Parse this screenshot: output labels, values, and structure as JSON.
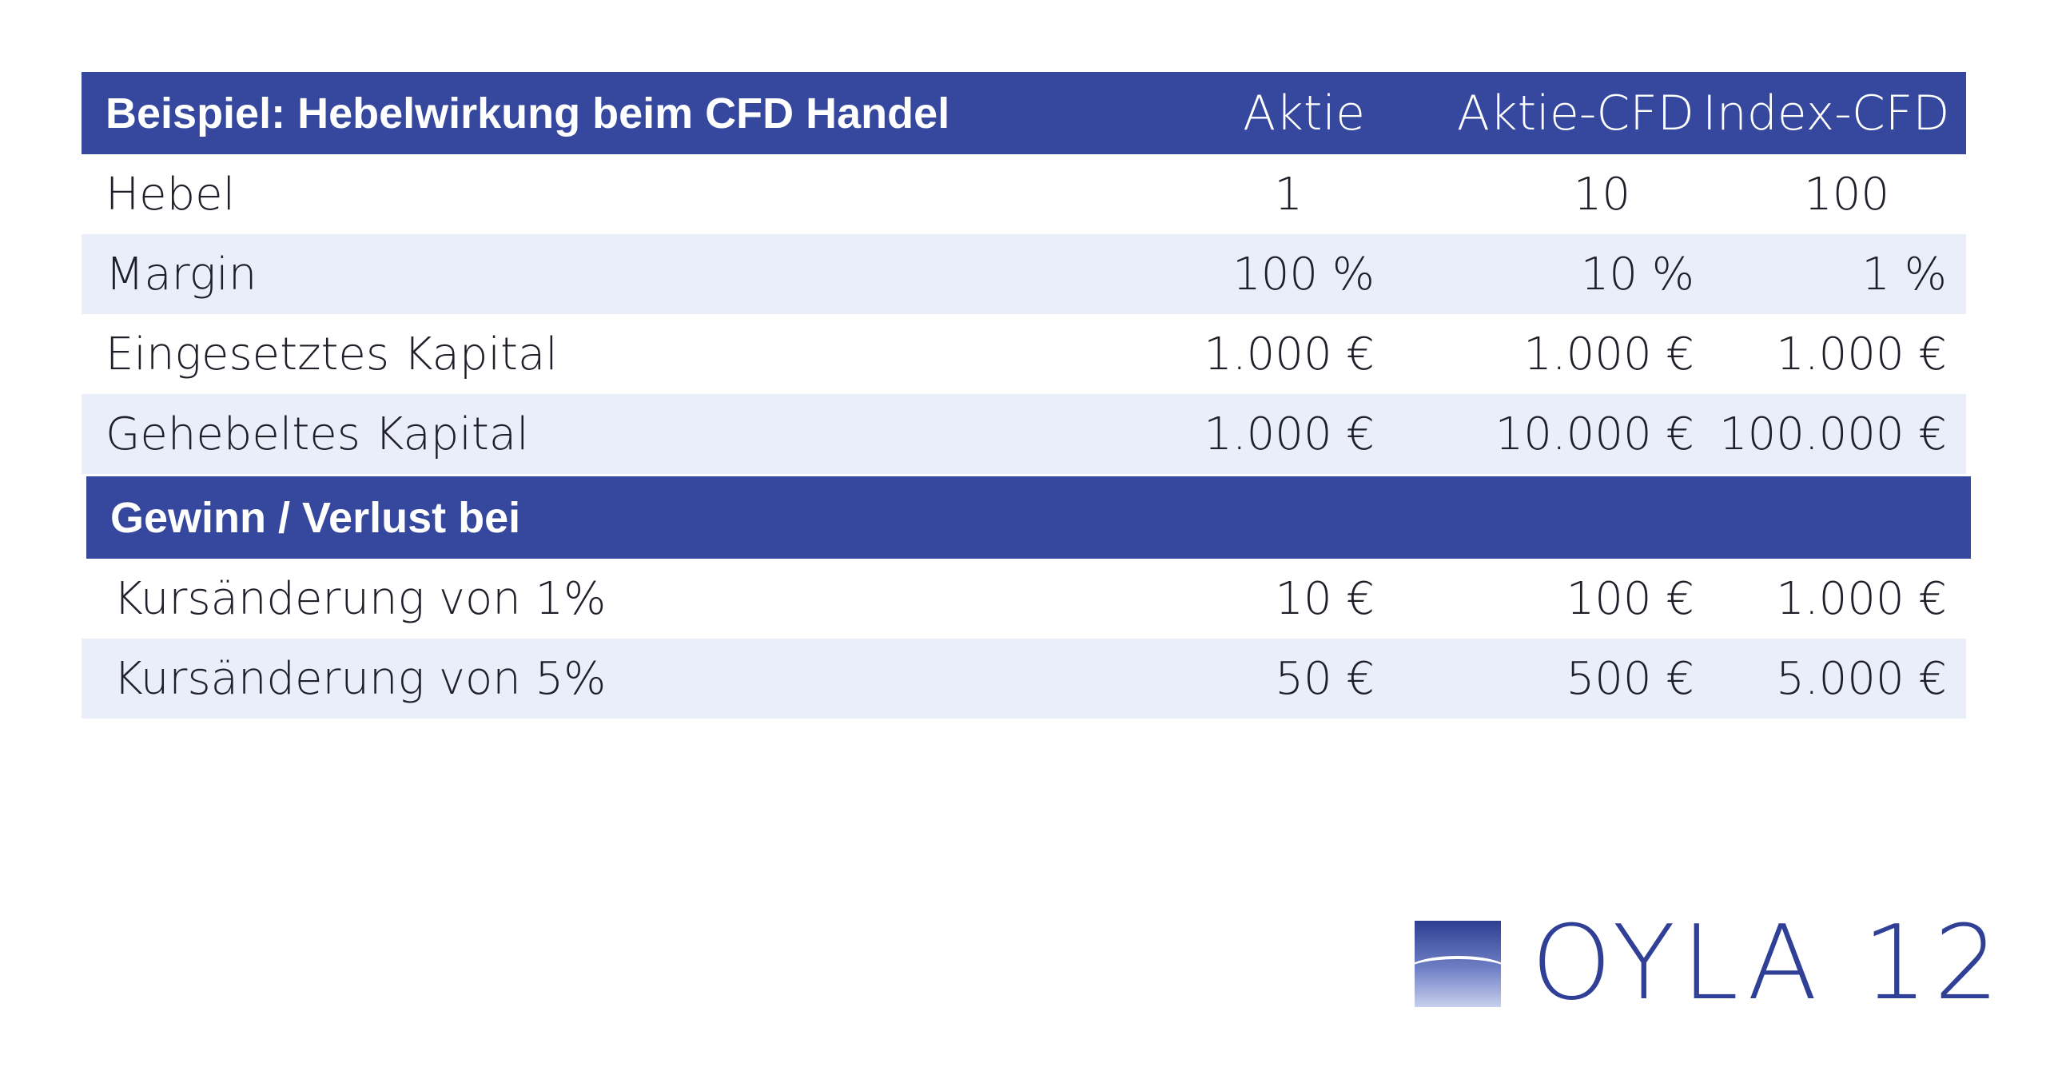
{
  "table": {
    "header": {
      "title": "Beispiel: Hebelwirkung beim CFD Handel",
      "col1": "Aktie",
      "col2": "Aktie-CFD",
      "col3": "Index-CFD"
    },
    "rows": [
      {
        "label": "Hebel",
        "v1": "1",
        "v2": "10",
        "v3": "100"
      },
      {
        "label": "Margin",
        "v1": "100 %",
        "v2": "10 %",
        "v3": "1 %"
      },
      {
        "label": "Eingesetztes Kapital",
        "v1": "1.000 €",
        "v2": "1.000 €",
        "v3": "1.000 €"
      },
      {
        "label": "Gehebeltes Kapital",
        "v1": "1.000 €",
        "v2": "10.000 €",
        "v3": "100.000 €"
      }
    ],
    "section": {
      "title": "Gewinn / Verlust bei"
    },
    "section_rows": [
      {
        "label": "Kursänderung von 1%",
        "v1": "10 €",
        "v2": "100 €",
        "v3": "1.000 €"
      },
      {
        "label": "Kursänderung von 5%",
        "v1": "50 €",
        "v2": "500 €",
        "v3": "5.000 €"
      }
    ]
  },
  "logo": {
    "text": "OYLA 12",
    "icon": "oyla-logo-mark-icon"
  },
  "colors": {
    "header_bg": "#35489e",
    "row_alt_bg": "#e9eef8",
    "logo_text": "#2f4096"
  }
}
